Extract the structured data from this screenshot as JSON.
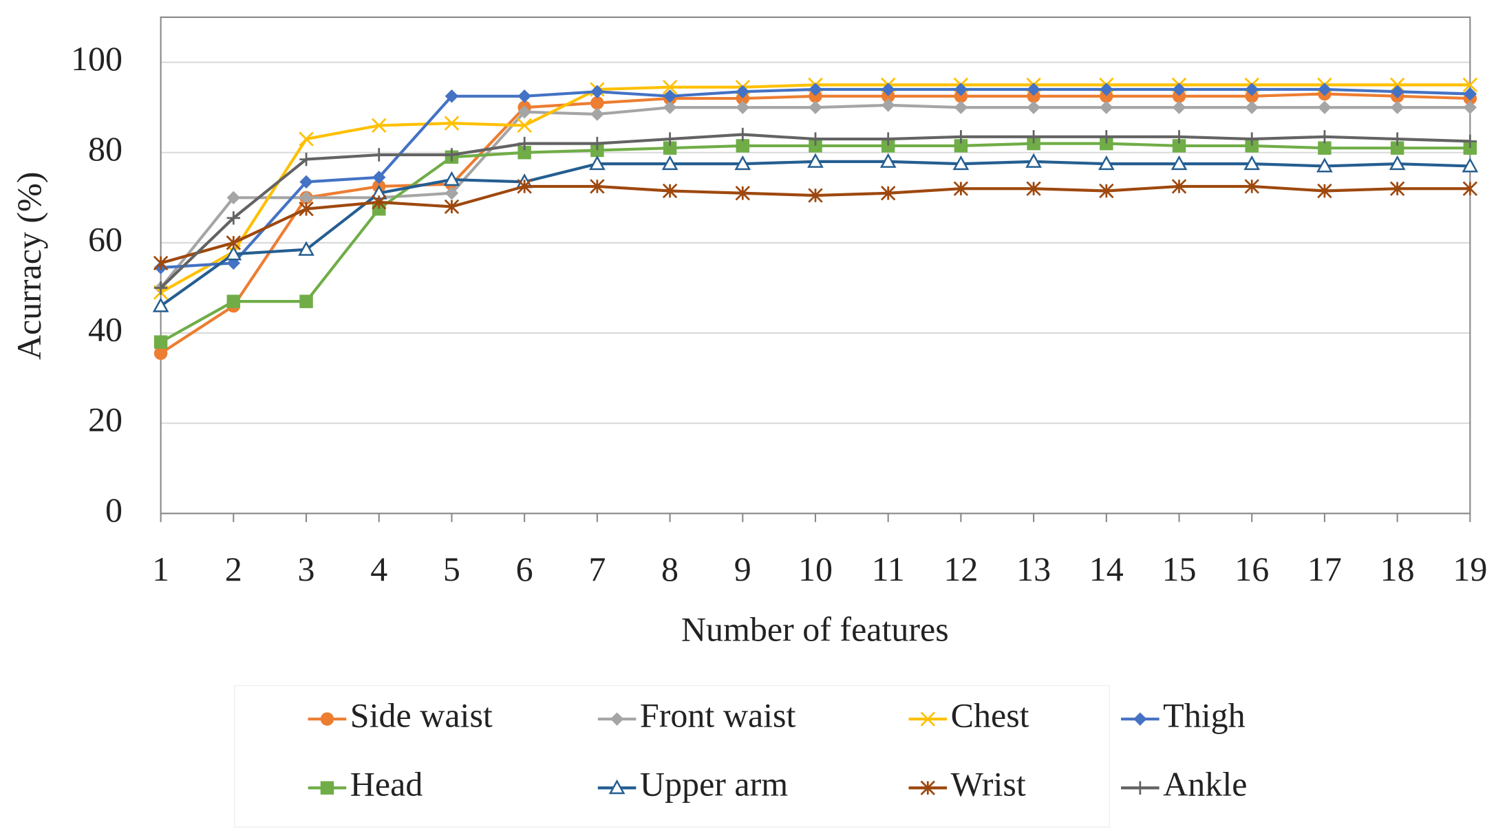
{
  "chart_data": {
    "type": "line",
    "x_label": "Number of features",
    "y_label": "Acurracy (%)",
    "x": [
      1,
      2,
      3,
      4,
      5,
      6,
      7,
      8,
      9,
      10,
      11,
      12,
      13,
      14,
      15,
      16,
      17,
      18,
      19
    ],
    "xlim": [
      1,
      19
    ],
    "xticks": [
      1,
      2,
      3,
      4,
      5,
      6,
      7,
      8,
      9,
      10,
      11,
      12,
      13,
      14,
      15,
      16,
      17,
      18,
      19
    ],
    "ylim": [
      0,
      110
    ],
    "yticks": [
      0,
      20,
      40,
      60,
      80,
      100
    ],
    "grid": true,
    "legend": "bottom",
    "series": [
      {
        "name": "Side waist",
        "color": "#ed7d31",
        "marker": "circle",
        "values": [
          35.5,
          46,
          70,
          72.5,
          73,
          90,
          91,
          92,
          92,
          92.5,
          92.5,
          92.5,
          92.5,
          92.5,
          92.5,
          92.5,
          93,
          92.5,
          92
        ]
      },
      {
        "name": "Front waist",
        "color": "#a5a5a5",
        "marker": "diamond",
        "values": [
          50,
          70,
          70,
          70,
          71,
          89,
          88.5,
          90,
          90,
          90,
          90.5,
          90,
          90,
          90,
          90,
          90,
          90,
          90,
          90
        ]
      },
      {
        "name": "Chest",
        "color": "#ffc000",
        "marker": "x",
        "values": [
          49,
          58,
          83,
          86,
          86.5,
          86,
          94,
          94.5,
          94.5,
          95,
          95,
          95,
          95,
          95,
          95,
          95,
          95,
          95,
          95
        ]
      },
      {
        "name": "Thigh",
        "color": "#4472c4",
        "marker": "diamond",
        "values": [
          54.5,
          55.5,
          73.5,
          74.5,
          92.5,
          92.5,
          93.5,
          92.5,
          93.5,
          94,
          94,
          94,
          94,
          94,
          94,
          94,
          94,
          93.5,
          93
        ]
      },
      {
        "name": "Head",
        "color": "#70ad47",
        "marker": "square",
        "values": [
          38,
          47,
          47,
          67.5,
          79,
          80,
          80.5,
          81,
          81.5,
          81.5,
          81.5,
          81.5,
          82,
          82,
          81.5,
          81.5,
          81,
          81,
          81
        ]
      },
      {
        "name": "Upper arm",
        "color": "#255e91",
        "marker": "triangle-open",
        "values": [
          46,
          57.5,
          58.5,
          71,
          74,
          73.5,
          77.5,
          77.5,
          77.5,
          78,
          78,
          77.5,
          78,
          77.5,
          77.5,
          77.5,
          77,
          77.5,
          77
        ]
      },
      {
        "name": "Wrist",
        "color": "#9e480e",
        "marker": "star",
        "values": [
          55.5,
          60,
          67.5,
          69,
          68,
          72.5,
          72.5,
          71.5,
          71,
          70.5,
          71,
          72,
          72,
          71.5,
          72.5,
          72.5,
          71.5,
          72,
          72
        ]
      },
      {
        "name": "Ankle",
        "color": "#636363",
        "marker": "plus",
        "values": [
          50,
          65.5,
          78.5,
          79.5,
          79.5,
          82,
          82,
          83,
          84,
          83,
          83,
          83.5,
          83.5,
          83.5,
          83.5,
          83,
          83.5,
          83,
          82.5
        ]
      }
    ]
  }
}
